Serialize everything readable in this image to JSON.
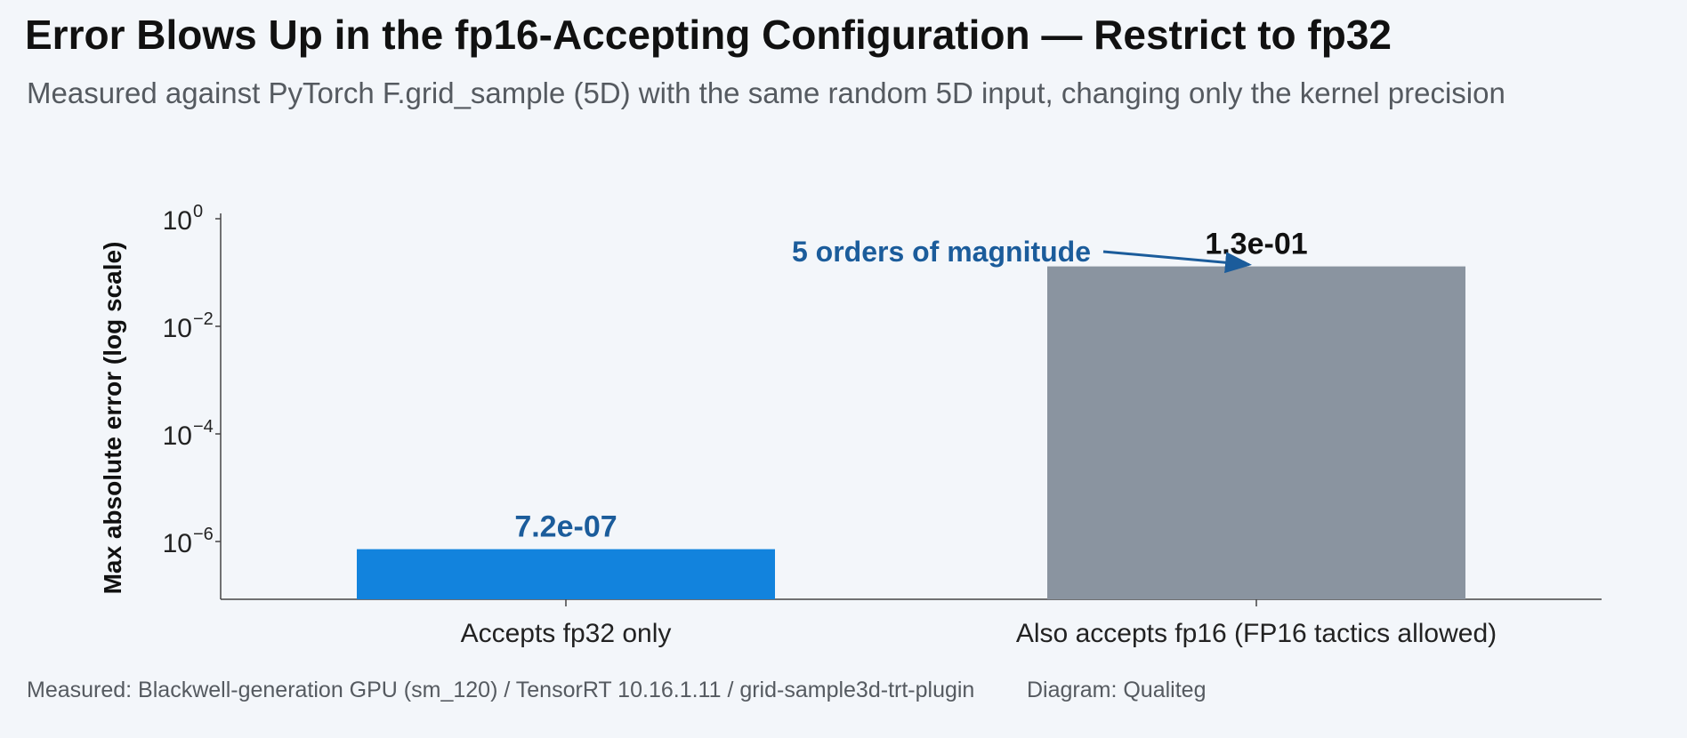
{
  "title": "Error Blows Up in the fp16-Accepting Configuration — Restrict to fp32",
  "subtitle": "Measured against PyTorch F.grid_sample (5D) with the same random 5D input, changing only the kernel precision",
  "footer": {
    "source": "Measured: Blackwell-generation GPU (sm_120) / TensorRT 10.16.1.11 / grid-sample3d-trt-plugin",
    "credit": "Diagram: Qualiteg"
  },
  "colors": {
    "fp32_bar": "#1283dd",
    "fp16_bar": "#8a94a0",
    "annotation": "#1b5c9b",
    "axis": "#444444"
  },
  "chart_data": {
    "type": "bar",
    "title": "Error Blows Up in the fp16-Accepting Configuration — Restrict to fp32",
    "xlabel": "",
    "ylabel": "Max absolute error (log scale)",
    "yscale": "log",
    "ylim": [
      1e-07,
      1
    ],
    "y_ticks": [
      {
        "value": 1,
        "base": "10",
        "exp": "0"
      },
      {
        "value": 0.01,
        "base": "10",
        "exp": "−2"
      },
      {
        "value": 0.0001,
        "base": "10",
        "exp": "−4"
      },
      {
        "value": 1e-06,
        "base": "10",
        "exp": "−6"
      }
    ],
    "categories": [
      "Accepts fp32 only",
      "Also accepts fp16 (FP16 tactics allowed)"
    ],
    "values": [
      7.2e-07,
      0.13
    ],
    "value_labels": [
      "7.2e-07",
      "1.3e-01"
    ],
    "annotation": {
      "text": "5 orders of magnitude",
      "points_to_category": 1
    },
    "grid": false,
    "legend": "none"
  }
}
